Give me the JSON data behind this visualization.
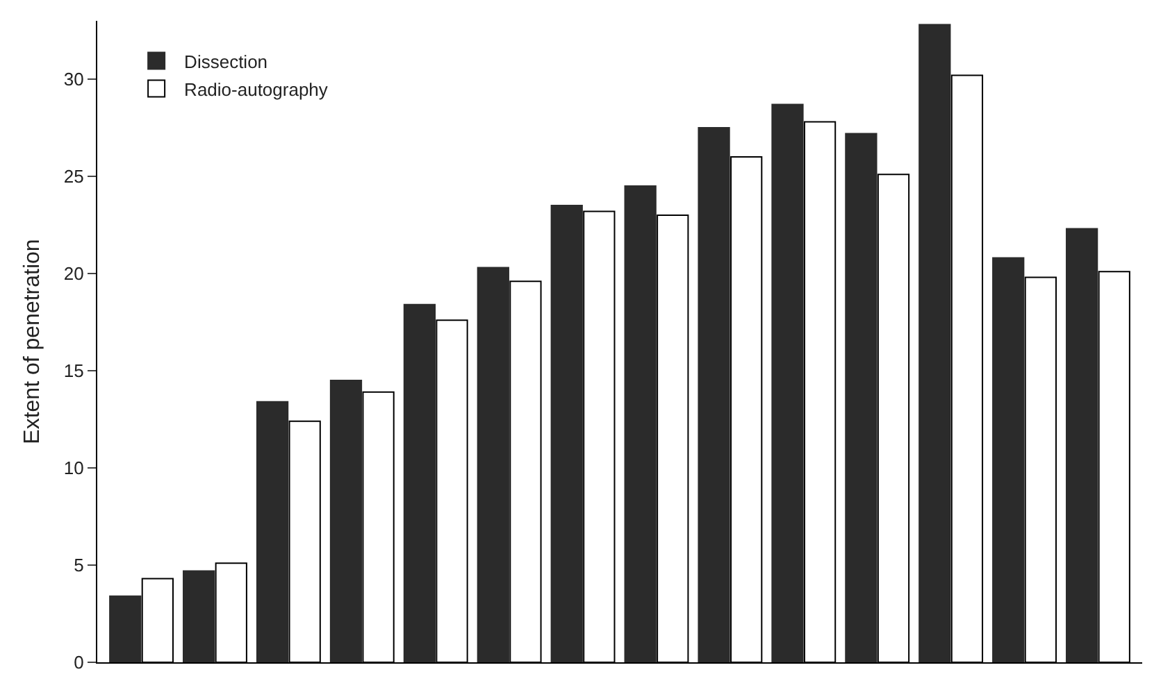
{
  "chart_data": {
    "type": "bar",
    "ylabel": "Extent of penetration",
    "categories": [
      null,
      null,
      null,
      null,
      null,
      null,
      null,
      null,
      null,
      null,
      null,
      null,
      null,
      null
    ],
    "series": [
      {
        "name": "Dissection",
        "color": "#2b2b2b",
        "values": [
          3.4,
          4.7,
          13.4,
          14.5,
          18.4,
          20.3,
          23.5,
          24.5,
          27.5,
          28.7,
          27.2,
          32.8,
          20.8,
          22.3
        ]
      },
      {
        "name": "Radio-autography",
        "color": "#ffffff",
        "values": [
          4.3,
          5.1,
          12.4,
          13.9,
          17.6,
          19.6,
          23.2,
          23.0,
          26.0,
          27.8,
          25.1,
          30.2,
          19.8,
          20.1
        ]
      }
    ],
    "ylim": [
      0,
      33
    ],
    "yticks": [
      0,
      5,
      10,
      15,
      20,
      25,
      30
    ],
    "tick_labels": "y",
    "grid": false,
    "legend": "top left"
  }
}
